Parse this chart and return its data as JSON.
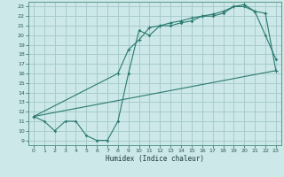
{
  "xlabel": "Humidex (Indice chaleur)",
  "xlim": [
    -0.5,
    23.5
  ],
  "ylim": [
    8.5,
    23.5
  ],
  "yticks": [
    9,
    10,
    11,
    12,
    13,
    14,
    15,
    16,
    17,
    18,
    19,
    20,
    21,
    22,
    23
  ],
  "xticks": [
    0,
    1,
    2,
    3,
    4,
    5,
    6,
    7,
    8,
    9,
    10,
    11,
    12,
    13,
    14,
    15,
    16,
    17,
    18,
    19,
    20,
    21,
    22,
    23
  ],
  "bg_color": "#cce8e8",
  "grid_color": "#a8cccc",
  "line_color": "#2a7a70",
  "line1_x": [
    0,
    23
  ],
  "line1_y": [
    11.5,
    16.3
  ],
  "line2_x": [
    0,
    1,
    2,
    3,
    4,
    5,
    6,
    7,
    8,
    9,
    10,
    11,
    12,
    13,
    14,
    15,
    16,
    17,
    18,
    19,
    20,
    21,
    22,
    23
  ],
  "line2_y": [
    11.5,
    11.0,
    10.0,
    11.0,
    11.0,
    9.5,
    9.0,
    9.0,
    11.0,
    16.0,
    20.5,
    20.0,
    21.0,
    21.0,
    21.3,
    21.5,
    22.0,
    22.0,
    22.3,
    23.0,
    23.0,
    22.5,
    20.0,
    17.5
  ],
  "line3_x": [
    0,
    8,
    9,
    10,
    11,
    12,
    13,
    14,
    15,
    16,
    17,
    18,
    19,
    20,
    21,
    22,
    23
  ],
  "line3_y": [
    11.5,
    16.0,
    18.5,
    19.5,
    20.8,
    21.0,
    21.3,
    21.5,
    21.8,
    22.0,
    22.2,
    22.5,
    23.0,
    23.2,
    22.5,
    22.3,
    16.3
  ]
}
